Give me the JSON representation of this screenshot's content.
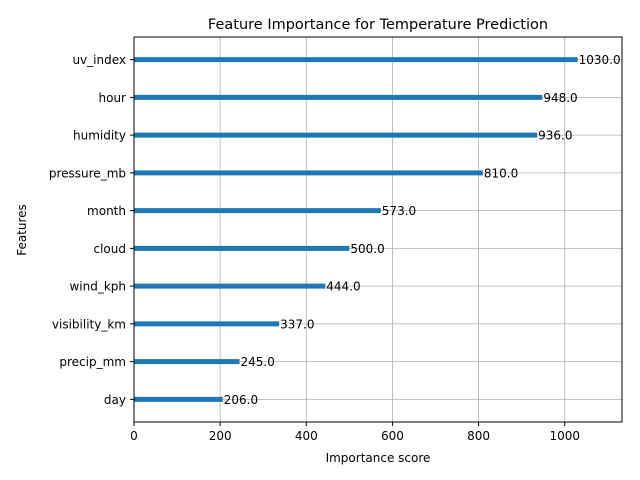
{
  "chart_data": {
    "type": "bar",
    "orientation": "horizontal",
    "title": "Feature Importance for Temperature Prediction",
    "xlabel": "Importance score",
    "ylabel": "Features",
    "categories": [
      "day",
      "precip_mm",
      "visibility_km",
      "wind_kph",
      "cloud",
      "month",
      "pressure_mb",
      "humidity",
      "hour",
      "uv_index"
    ],
    "values": [
      206.0,
      245.0,
      337.0,
      444.0,
      500.0,
      573.0,
      810.0,
      936.0,
      948.0,
      1030.0
    ],
    "value_labels": [
      "206.0",
      "245.0",
      "337.0",
      "444.0",
      "500.0",
      "573.0",
      "810.0",
      "936.0",
      "948.0",
      "1030.0"
    ],
    "xlim": [
      0,
      1133
    ],
    "xticks": [
      0,
      200,
      400,
      600,
      800,
      1000
    ],
    "grid": true,
    "bar_color": "#1f77b4"
  }
}
